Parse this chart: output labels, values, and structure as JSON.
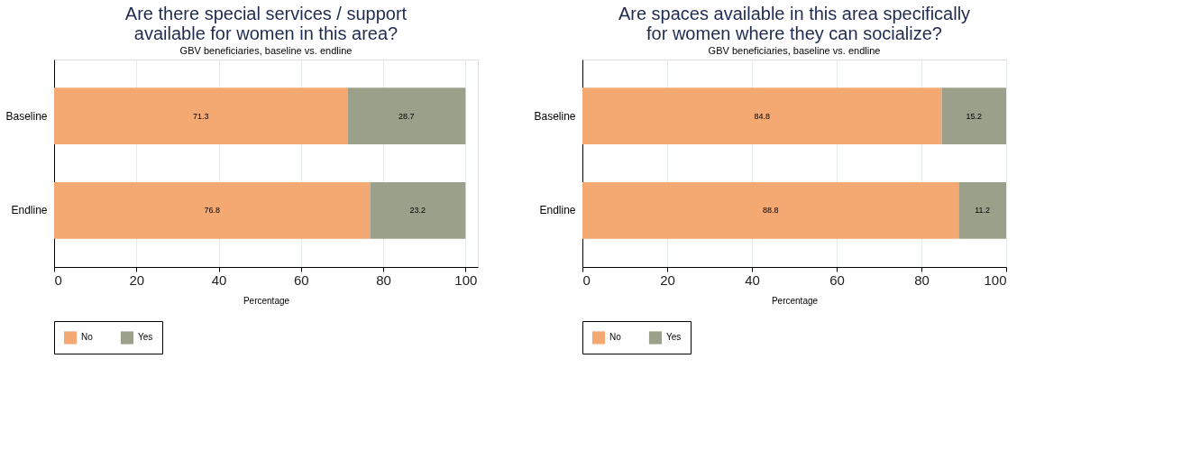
{
  "chart_data": [
    {
      "type": "bar",
      "orientation": "horizontal",
      "stacked": true,
      "title": [
        "Are there special services / support",
        "available for women in this area?"
      ],
      "subtitle": "GBV beneficiaries, baseline vs. endline",
      "xlabel": "Percentage",
      "categories": [
        "Baseline",
        "Endline"
      ],
      "series": [
        {
          "name": "No",
          "color": "#f4a872",
          "values": [
            71.3,
            76.8
          ]
        },
        {
          "name": "Yes",
          "color": "#9aa08a",
          "values": [
            28.7,
            23.2
          ]
        }
      ],
      "xlim": [
        0,
        103
      ],
      "xticks": [
        0,
        20,
        40,
        60,
        80,
        100
      ],
      "grid": "x",
      "legend": "bottom",
      "data_labels": true
    },
    {
      "type": "bar",
      "orientation": "horizontal",
      "stacked": true,
      "title": [
        "Are spaces available in this area specifically",
        "for women where they can socialize?"
      ],
      "subtitle": "GBV beneficiaries, baseline vs. endline",
      "xlabel": "Percentage",
      "categories": [
        "Baseline",
        "Endline"
      ],
      "series": [
        {
          "name": "No",
          "color": "#f4a872",
          "values": [
            84.8,
            88.8
          ]
        },
        {
          "name": "Yes",
          "color": "#9aa08a",
          "values": [
            15.2,
            11.2
          ]
        }
      ],
      "xlim": [
        0,
        100
      ],
      "xticks": [
        0,
        20,
        40,
        60,
        80,
        100
      ],
      "grid": "x",
      "legend": "bottom",
      "data_labels": true
    }
  ]
}
